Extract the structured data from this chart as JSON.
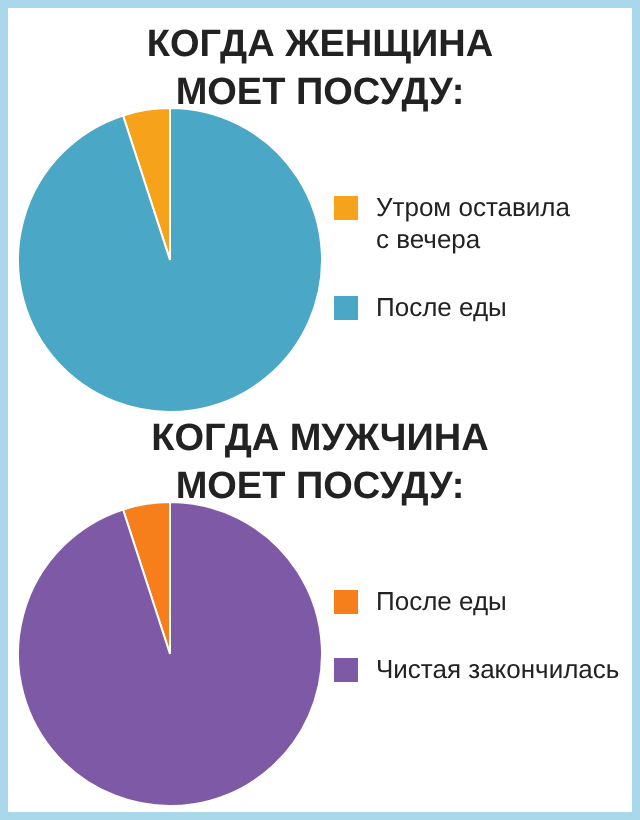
{
  "chart_data": [
    {
      "type": "pie",
      "title": "КОГДА ЖЕНЩИНА\nМОЕТ ПОСУДУ:",
      "categories": [
        "Утром оставила\nс вечера",
        "После еды"
      ],
      "values": [
        5,
        95
      ],
      "colors": [
        "#f7a21b",
        "#4aa8c6"
      ],
      "legend": "right"
    },
    {
      "type": "pie",
      "title": "КОГДА МУЖЧИНА\nМОЕТ ПОСУДУ:",
      "categories": [
        "После еды",
        "Чистая закончилась"
      ],
      "values": [
        5,
        95
      ],
      "colors": [
        "#f77f1b",
        "#7e5aa6"
      ],
      "legend": "right"
    }
  ]
}
